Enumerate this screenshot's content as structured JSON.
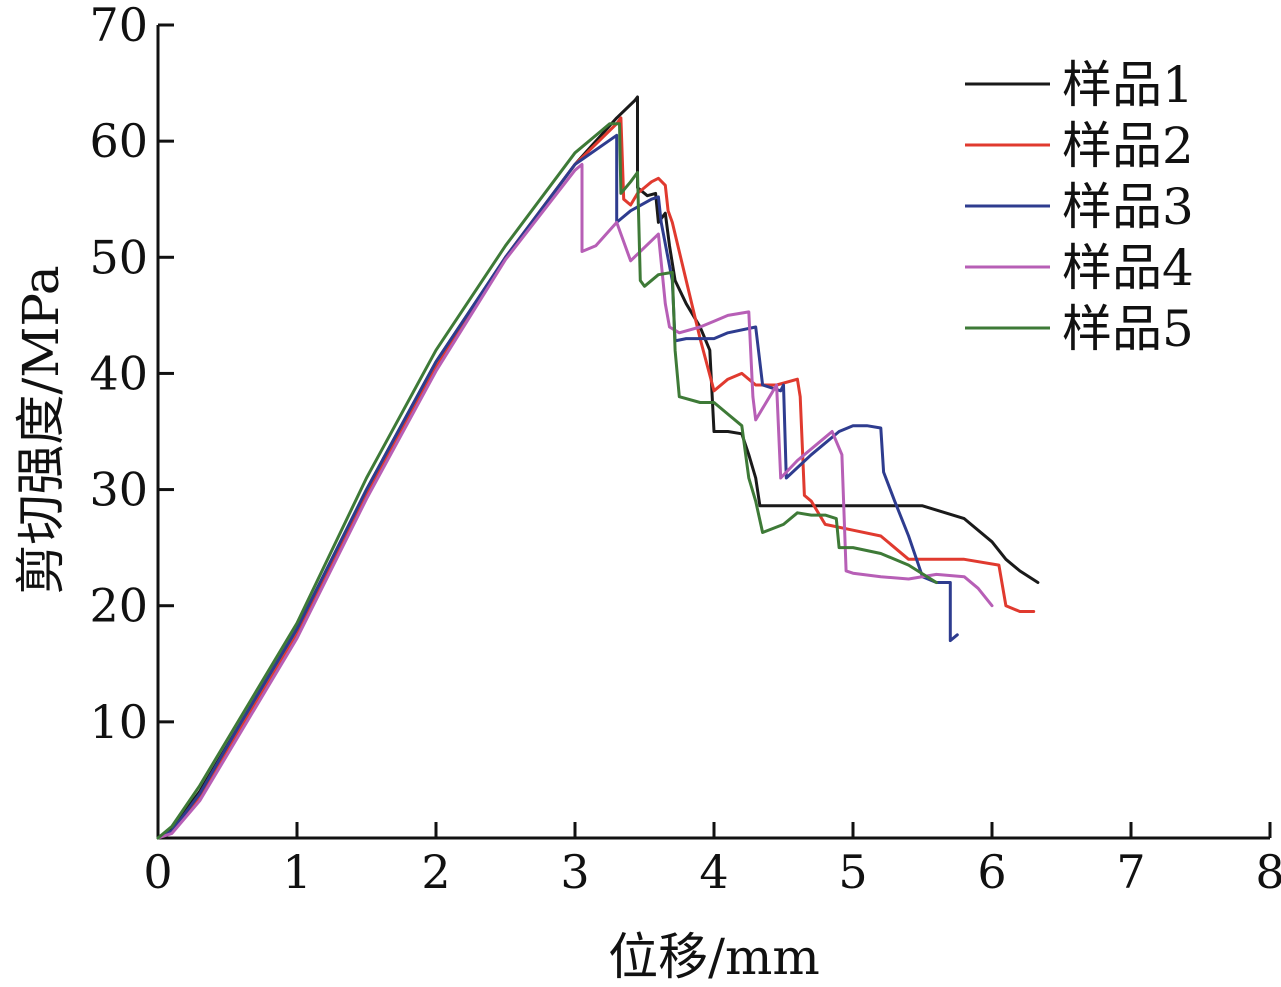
{
  "chart_data": {
    "type": "line",
    "title": "",
    "xlabel": "位移/mm",
    "ylabel": "剪切强度/MPa",
    "xlim": [
      0,
      8
    ],
    "ylim": [
      0,
      70
    ],
    "xticks": [
      0,
      1,
      2,
      3,
      4,
      5,
      6,
      7,
      8
    ],
    "xtick_labels": [
      "0",
      "1",
      "2",
      "3",
      "4",
      "5",
      "6",
      "7",
      "8"
    ],
    "yticks": [
      10,
      20,
      30,
      40,
      50,
      60,
      70
    ],
    "ytick_labels": [
      "10",
      "20",
      "30",
      "40",
      "50",
      "60",
      "70"
    ],
    "grid": false,
    "legend_position": "top-right",
    "series": [
      {
        "name": "样品1",
        "color": "#1a1a1a",
        "x": [
          0,
          0.1,
          0.3,
          0.6,
          1.0,
          1.5,
          2.0,
          2.5,
          3.0,
          3.3,
          3.43,
          3.45,
          3.45,
          3.52,
          3.58,
          3.6,
          3.65,
          3.68,
          3.72,
          3.8,
          3.9,
          3.97,
          4.0,
          4.1,
          4.2,
          4.25,
          4.3,
          4.33,
          4.5,
          5.0,
          5.5,
          5.8,
          6.0,
          6.1,
          6.2,
          6.33
        ],
        "y": [
          0,
          0.8,
          4,
          10,
          18,
          30,
          41,
          50,
          58,
          62,
          63.5,
          63.8,
          56,
          55.3,
          55.5,
          53,
          53.8,
          51,
          48,
          46,
          44,
          42,
          35,
          35,
          34.8,
          33,
          31,
          28.6,
          28.6,
          28.6,
          28.6,
          27.5,
          25.5,
          24,
          23,
          22
        ]
      },
      {
        "name": "样品2",
        "color": "#e03a2f",
        "x": [
          0,
          0.1,
          0.3,
          0.6,
          1.0,
          1.5,
          2.0,
          2.5,
          3.0,
          3.3,
          3.33,
          3.35,
          3.4,
          3.45,
          3.5,
          3.55,
          3.6,
          3.65,
          3.67,
          3.7,
          3.8,
          3.9,
          4.0,
          4.1,
          4.2,
          4.3,
          4.45,
          4.6,
          4.62,
          4.65,
          4.7,
          4.8,
          5.0,
          5.2,
          5.4,
          5.8,
          6.05,
          6.1,
          6.2,
          6.3
        ],
        "y": [
          0,
          0.5,
          3.5,
          9.5,
          17.5,
          29.5,
          40.5,
          50,
          58,
          61.5,
          62,
          55,
          54.5,
          55.5,
          56,
          56.5,
          56.8,
          56.2,
          54,
          53,
          48,
          43,
          38.5,
          39.5,
          40,
          39,
          39,
          39.5,
          38,
          29.5,
          29,
          27,
          26.5,
          26,
          24,
          24,
          23.5,
          20,
          19.5,
          19.5
        ]
      },
      {
        "name": "样品3",
        "color": "#2e3c8f",
        "x": [
          0,
          0.1,
          0.3,
          0.6,
          1.0,
          1.5,
          2.0,
          2.5,
          3.0,
          3.3,
          3.3,
          3.4,
          3.55,
          3.6,
          3.62,
          3.7,
          3.72,
          3.8,
          4.0,
          4.1,
          4.3,
          4.35,
          4.48,
          4.5,
          4.52,
          4.7,
          4.9,
          5.0,
          5.1,
          5.2,
          5.22,
          5.3,
          5.4,
          5.5,
          5.6,
          5.7,
          5.7,
          5.75
        ],
        "y": [
          0,
          0.6,
          3.8,
          10,
          18,
          30,
          41,
          50,
          58,
          60.5,
          53,
          54,
          55,
          55.2,
          53,
          48,
          42.8,
          43,
          43,
          43.5,
          44,
          39,
          38.5,
          39,
          31,
          33,
          35,
          35.5,
          35.5,
          35.3,
          31.5,
          29,
          26,
          22.5,
          22,
          22,
          17,
          17.5
        ]
      },
      {
        "name": "样品4",
        "color": "#b75fb6",
        "x": [
          0,
          0.1,
          0.3,
          0.6,
          1.0,
          1.5,
          2.0,
          2.5,
          3.0,
          3.05,
          3.05,
          3.15,
          3.3,
          3.4,
          3.6,
          3.65,
          3.68,
          3.75,
          3.9,
          4.0,
          4.1,
          4.25,
          4.28,
          4.3,
          4.4,
          4.45,
          4.48,
          4.6,
          4.8,
          4.85,
          4.92,
          4.95,
          5.0,
          5.2,
          5.4,
          5.6,
          5.8,
          5.9,
          6.0
        ],
        "y": [
          0,
          0.4,
          3.2,
          9.2,
          17.2,
          29.2,
          40.2,
          49.8,
          57.5,
          58,
          50.5,
          51,
          53,
          49.7,
          52,
          46,
          44,
          43.5,
          44,
          44.5,
          45,
          45.3,
          38,
          36,
          38,
          39,
          31,
          32.5,
          34.5,
          35,
          33,
          23,
          22.8,
          22.5,
          22.3,
          22.7,
          22.5,
          21.5,
          20
        ]
      },
      {
        "name": "样品5",
        "color": "#3e7a37",
        "x": [
          0,
          0.1,
          0.3,
          0.6,
          1.0,
          1.5,
          2.0,
          2.5,
          3.0,
          3.25,
          3.32,
          3.33,
          3.4,
          3.45,
          3.47,
          3.5,
          3.6,
          3.7,
          3.72,
          3.75,
          3.9,
          4.0,
          4.1,
          4.2,
          4.25,
          4.3,
          4.35,
          4.5,
          4.6,
          4.7,
          4.8,
          4.88,
          4.9,
          5.0,
          5.2,
          5.4,
          5.6
        ],
        "y": [
          0,
          1,
          4.5,
          10.5,
          18.5,
          31,
          42,
          51,
          59,
          61.5,
          61.5,
          55.5,
          56.5,
          57.3,
          48,
          47.5,
          48.5,
          48.7,
          42,
          38,
          37.5,
          37.5,
          36.5,
          35.5,
          31,
          29,
          26.3,
          27,
          28,
          27.8,
          27.8,
          27.5,
          25,
          25,
          24.5,
          23.5,
          22
        ]
      }
    ]
  }
}
